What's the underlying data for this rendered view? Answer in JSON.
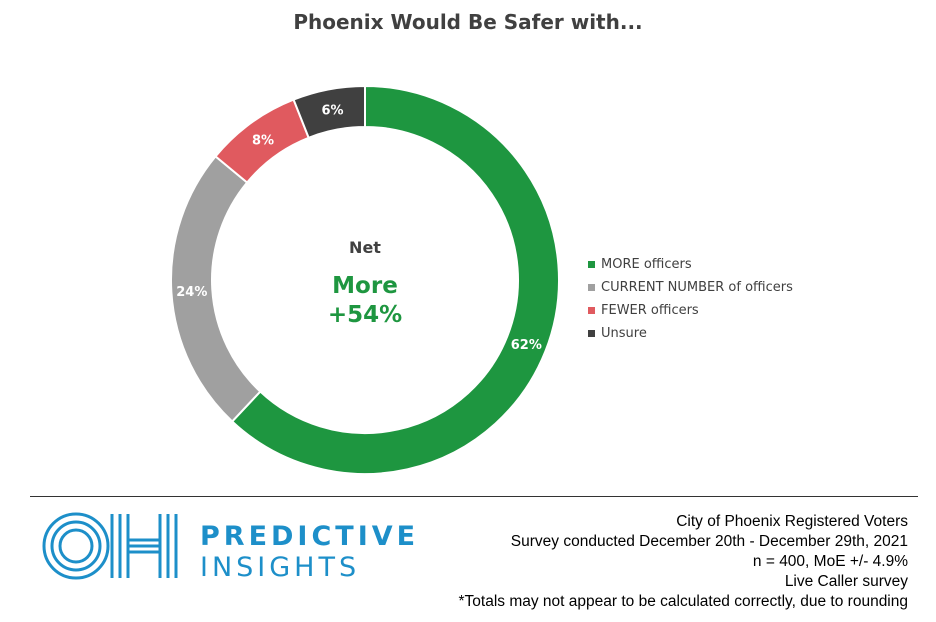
{
  "title": "Phoenix Would Be Safer with...",
  "center": {
    "label": "Net",
    "line1": "More",
    "line2": "+54%",
    "label_color": "#404040",
    "value_color": "#1e9640"
  },
  "chart_data": {
    "type": "pie",
    "donut": true,
    "title": "Phoenix Would Be Safer with...",
    "series": [
      {
        "name": "MORE officers",
        "value": 62,
        "label": "62%",
        "color": "#1e9640"
      },
      {
        "name": "CURRENT NUMBER of officers",
        "value": 24,
        "label": "24%",
        "color": "#a0a0a0"
      },
      {
        "name": "FEWER officers",
        "value": 8,
        "label": "8%",
        "color": "#e05a5f"
      },
      {
        "name": "Unsure",
        "value": 6,
        "label": "6%",
        "color": "#404040"
      }
    ],
    "legend_position": "right"
  },
  "legend": [
    {
      "label": "MORE officers",
      "color": "#1e9640"
    },
    {
      "label": "CURRENT NUMBER of officers",
      "color": "#a0a0a0"
    },
    {
      "label": "FEWER officers",
      "color": "#e05a5f"
    },
    {
      "label": "Unsure",
      "color": "#404040"
    }
  ],
  "brand": {
    "line1": "PREDICTIVE",
    "line2": "INSIGHTS",
    "color": "#1d8fc9"
  },
  "notes": {
    "line1": "City of Phoenix Registered Voters",
    "line2": "Survey conducted December 20th - December 29th, 2021",
    "line3": "n = 400, MoE +/- 4.9%",
    "line4": "Live Caller survey",
    "line5": "*Totals may not appear to be calculated correctly, due to rounding"
  }
}
